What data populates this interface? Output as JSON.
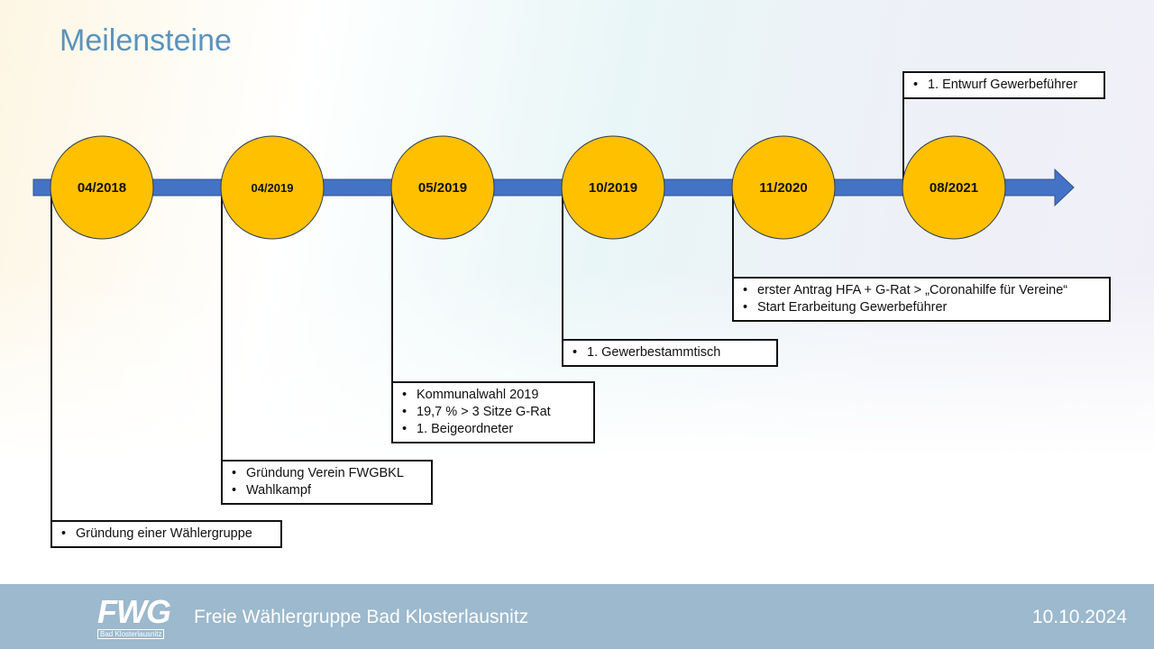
{
  "title": "Meilensteine",
  "milestones": [
    {
      "date": "04/2018",
      "items": [
        "Gründung einer Wählergruppe"
      ]
    },
    {
      "date": "04/2019",
      "items": [
        "Gründung Verein FWGBKL",
        "Wahlkampf"
      ]
    },
    {
      "date": "05/2019",
      "items": [
        "Kommunalwahl 2019",
        "19,7 % > 3 Sitze G-Rat",
        "1. Beigeordneter"
      ]
    },
    {
      "date": "10/2019",
      "items": [
        "1. Gewerbestammtisch"
      ]
    },
    {
      "date": "11/2020",
      "items": [
        "erster Antrag HFA + G-Rat > „Coronahilfe für Vereine“",
        "Start Erarbeitung Gewerbeführer"
      ]
    },
    {
      "date": "08/2021",
      "items": [
        "1. Entwurf Gewerbeführer"
      ]
    }
  ],
  "footer": {
    "logo": "FWG",
    "logo_subtitle": "Bad Klosterlausnitz",
    "text": "Freie Wählergruppe Bad Klosterlausnitz",
    "date": "10.10.2024"
  }
}
